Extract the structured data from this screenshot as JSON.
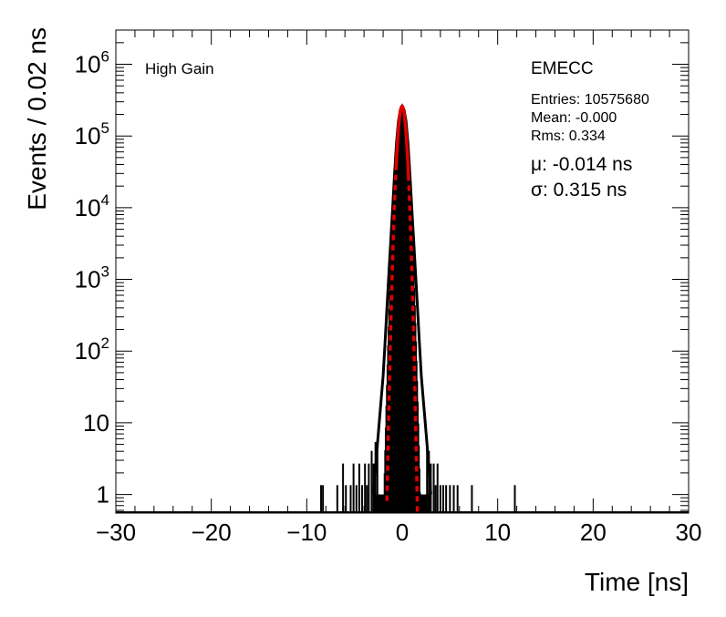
{
  "chart_data": {
    "type": "histogram",
    "y_scale": "log",
    "xlabel": "Time [ns]",
    "ylabel": "Events / 0.02 ns",
    "xlim": [
      -30,
      30
    ],
    "ylim": [
      0.55,
      3000000
    ],
    "x_ticks": [
      -30,
      -20,
      -10,
      0,
      10,
      20,
      30
    ],
    "x_tick_labels": [
      "−30",
      "−20",
      "−10",
      "0",
      "10",
      "20",
      "30"
    ],
    "y_ticks": [
      {
        "value": 1,
        "base": "1",
        "exp": ""
      },
      {
        "value": 10,
        "base": "10",
        "exp": ""
      },
      {
        "value": 100,
        "base": "10",
        "exp": "2"
      },
      {
        "value": 1000,
        "base": "10",
        "exp": "3"
      },
      {
        "value": 10000,
        "base": "10",
        "exp": "4"
      },
      {
        "value": 100000,
        "base": "10",
        "exp": "5"
      },
      {
        "value": 1000000,
        "base": "10",
        "exp": "6"
      }
    ],
    "annotations": {
      "gain": "High Gain",
      "partition": "EMECC",
      "entries": "Entries: 10575680",
      "mean": "Mean: -0.000",
      "rms": "Rms: 0.334",
      "mu": "μ: -0.014 ns",
      "sigma": "σ: 0.315 ns"
    },
    "stats": {
      "entries": 10575680,
      "mean": -0.0,
      "rms": 0.334
    },
    "fit": {
      "function": "gaussian",
      "mu": -0.014,
      "sigma": 0.315,
      "peak": 260000,
      "color": "#e00000",
      "solid_range": [
        -0.65,
        0.65
      ],
      "dashed_range": [
        -1.6,
        1.6
      ]
    },
    "histogram": {
      "color": "#000000",
      "core_envelope": [
        [
          -3.0,
          1
        ],
        [
          -2.6,
          5
        ],
        [
          -2.3,
          15
        ],
        [
          -2.0,
          45
        ],
        [
          -1.8,
          130
        ],
        [
          -1.6,
          400
        ],
        [
          -1.4,
          1200
        ],
        [
          -1.2,
          3500
        ],
        [
          -1.0,
          10000
        ],
        [
          -0.8,
          30000
        ],
        [
          -0.6,
          80000
        ],
        [
          -0.4,
          160000
        ],
        [
          -0.2,
          230000
        ],
        [
          0.0,
          260000
        ],
        [
          0.2,
          230000
        ],
        [
          0.4,
          160000
        ],
        [
          0.6,
          80000
        ],
        [
          0.8,
          30000
        ],
        [
          1.0,
          10000
        ],
        [
          1.2,
          3500
        ],
        [
          1.4,
          1200
        ],
        [
          1.6,
          400
        ],
        [
          1.8,
          130
        ],
        [
          2.0,
          45
        ],
        [
          2.3,
          15
        ],
        [
          2.6,
          5
        ],
        [
          3.0,
          1
        ]
      ],
      "tail_spikes": [
        [
          -8.5,
          1
        ],
        [
          -8.3,
          1
        ],
        [
          -6.8,
          1
        ],
        [
          -6.2,
          2
        ],
        [
          -5.9,
          1
        ],
        [
          -5.4,
          1
        ],
        [
          -5.1,
          2
        ],
        [
          -4.8,
          1
        ],
        [
          -4.5,
          2
        ],
        [
          -4.2,
          1
        ],
        [
          -3.9,
          2
        ],
        [
          -3.7,
          1
        ],
        [
          -3.5,
          2
        ],
        [
          -3.2,
          3
        ],
        [
          -3.0,
          2
        ],
        [
          -2.8,
          4
        ],
        [
          -2.6,
          3
        ],
        [
          2.6,
          4
        ],
        [
          2.8,
          3
        ],
        [
          3.0,
          2
        ],
        [
          3.3,
          2
        ],
        [
          3.5,
          1
        ],
        [
          3.7,
          2
        ],
        [
          4.0,
          1
        ],
        [
          4.3,
          1
        ],
        [
          4.6,
          1
        ],
        [
          5.0,
          1
        ],
        [
          5.4,
          1
        ],
        [
          5.8,
          1
        ],
        [
          7.3,
          1
        ],
        [
          11.8,
          1
        ]
      ]
    }
  }
}
